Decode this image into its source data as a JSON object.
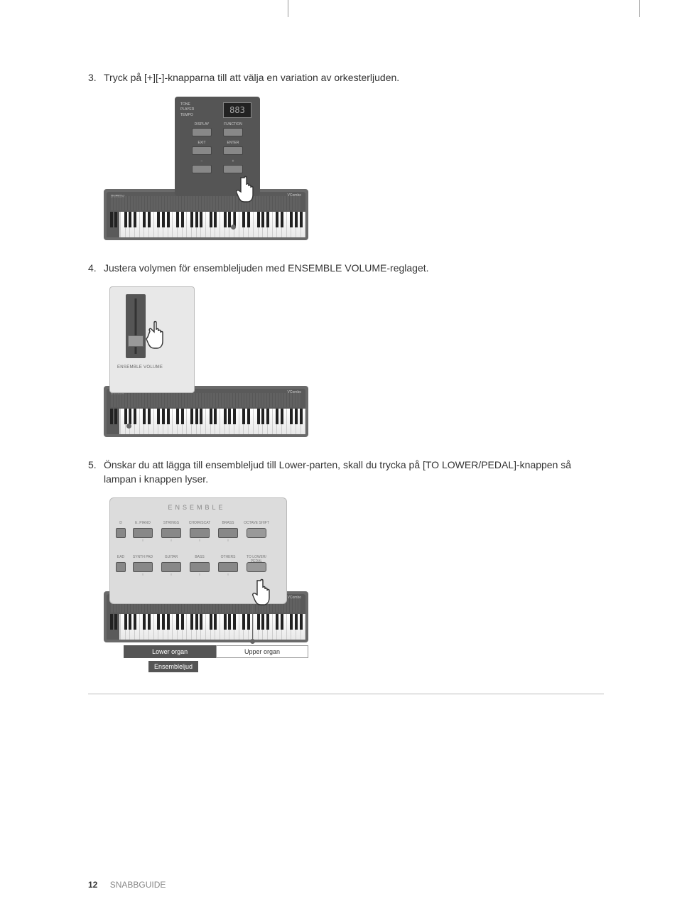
{
  "page": {
    "number": "12",
    "footer_label": "SNABBGUIDE"
  },
  "steps": {
    "s3": {
      "num": "3.",
      "text": "Tryck på [+][-]-knapparna till att välja en variation av orkesterljuden."
    },
    "s4": {
      "num": "4.",
      "text": "Justera volymen för ensembleljuden med ENSEMBLE VOLUME-reglaget."
    },
    "s5": {
      "num": "5.",
      "text": "Önskar du att lägga till ensembleljud till Lower-parten, skall du trycka på [TO LOWER/PEDAL]-knappen så lampan i knappen lyser."
    }
  },
  "control_panel": {
    "labels": {
      "tone": "TONE",
      "player": "PLAYER",
      "tempo": "TEMPO"
    },
    "display_value": "883",
    "buttons": {
      "display": "DISPLAY",
      "function": "FUNCTION",
      "exit": "EXIT",
      "enter": "ENTER",
      "minus": "−",
      "plus": "+"
    }
  },
  "volume_panel": {
    "label": "ENSEMBLE VOLUME"
  },
  "ensemble_panel": {
    "title": "ENSEMBLE",
    "row1": [
      "E. PIANO",
      "STRINGS",
      "CHOIR/SCAT",
      "BRASS",
      "OCTAVE SHIFT"
    ],
    "row2": [
      "SYNTH PAD",
      "GUITAR",
      "BASS",
      "OTHERS",
      "TO LOWER/ PEDAL"
    ],
    "row1_prefix": "D",
    "row2_prefix": "EAD"
  },
  "keyboard_labels": {
    "lower": "Lower organ",
    "upper": "Upper organ",
    "ensemble": "Ensembleljud"
  },
  "colors": {
    "panel_bg": "#555555",
    "page_bg": "#ffffff",
    "text": "#333333",
    "muted": "#888888",
    "light_panel": "#dcdcdc",
    "border": "#bbbbbb"
  }
}
